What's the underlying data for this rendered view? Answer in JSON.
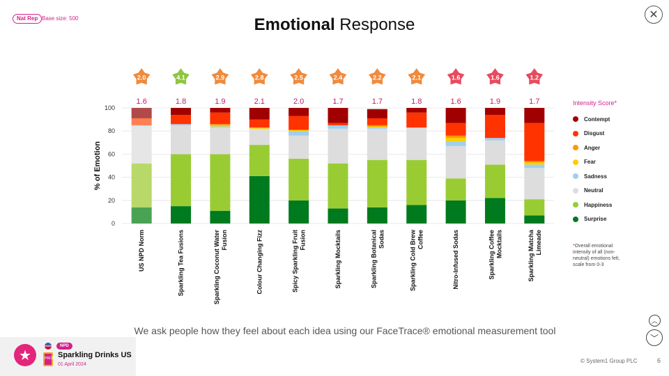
{
  "header": {
    "nat_rep_badge": "Nat Rep",
    "base_size": "Base size: 500",
    "title_bold": "Emotional",
    "title_rest": "Response",
    "close_icon": "close-icon"
  },
  "legend": {
    "title": "Intensity Score*",
    "items": [
      {
        "label": "Contempt",
        "color": "#a00000"
      },
      {
        "label": "Disgust",
        "color": "#ff3300"
      },
      {
        "label": "Anger",
        "color": "#ff9900"
      },
      {
        "label": "Fear",
        "color": "#ffcc00"
      },
      {
        "label": "Sadness",
        "color": "#9fcfef"
      },
      {
        "label": "Neutral",
        "color": "#dddddd"
      },
      {
        "label": "Happiness",
        "color": "#99cc33"
      },
      {
        "label": "Surprise",
        "color": "#007a1e"
      }
    ]
  },
  "footnote": {
    "star": "*",
    "text": "Overall emotional intensity of all (non-neutral) emotions felt, scale from 0-3"
  },
  "subtitle": "We ask people how they feel about each idea using our FaceTrace® emotional measurement tool",
  "footer": {
    "npd_badge": "NPD",
    "product_badge": "PROD",
    "category_name": "Sparkling Drinks US",
    "date": "01 April 2024",
    "copyright": "© System1 Group PLC",
    "page_number": "6",
    "logo_icon": "system1-star-logo",
    "flag_icon": "us-flag-icon"
  },
  "nav": {
    "up_icon": "chevron-up-icon",
    "down_icon": "chevron-down-icon"
  },
  "chart_data": {
    "type": "bar",
    "stacked": true,
    "ylabel": "% of Emotion",
    "ylim": [
      0,
      100
    ],
    "yticks": [
      0,
      20,
      40,
      60,
      80,
      100
    ],
    "grid": true,
    "legend_position": "right",
    "categories": [
      "US NPD Norm",
      "Sparkling Tea Fusions",
      "Sparkling Coconut Water Fusion",
      "Colour Changing Fizz",
      "Spicy Sparkling Fruit Fusion",
      "Sparkling Mocktails",
      "Sparkling Botanical Sodas",
      "Sparkling Cold Brew Coffee",
      "Nitro-Infused Sodas",
      "Sparkling Coffee Mocktails",
      "Sparkling Matcha Limeade"
    ],
    "star_ratings": [
      "2.0",
      "4.1",
      "2.9",
      "2.8",
      "2.5",
      "2.4",
      "2.2",
      "2.1",
      "1.6",
      "1.6",
      "1.2"
    ],
    "star_colors": [
      "#f08a3c",
      "#8dc63f",
      "#f08a3c",
      "#f08a3c",
      "#f08a3c",
      "#f08a3c",
      "#f08a3c",
      "#f08a3c",
      "#e84a5f",
      "#e84a5f",
      "#e84a5f"
    ],
    "intensity_scores": [
      "1.6",
      "1.8",
      "1.9",
      "2.1",
      "2.0",
      "1.7",
      "1.7",
      "1.8",
      "1.6",
      "1.9",
      "1.7"
    ],
    "norm_colors": {
      "Contempt": "#b04a4a",
      "Disgust": "#ff7f50",
      "Anger": "#ffb84d",
      "Fear": "#ffe066",
      "Sadness": "#c4e0f4",
      "Neutral": "#e6e6e6",
      "Happiness": "#b8d96a",
      "Surprise": "#4aa354"
    },
    "series": [
      {
        "name": "Surprise",
        "values": [
          14,
          15,
          11,
          41,
          20,
          13,
          14,
          16,
          20,
          22,
          7
        ]
      },
      {
        "name": "Happiness",
        "values": [
          38,
          45,
          49,
          27,
          36,
          39,
          41,
          39,
          19,
          29,
          14
        ]
      },
      {
        "name": "Neutral",
        "values": [
          32,
          25,
          23,
          14,
          20,
          30,
          27,
          28,
          28,
          21,
          27
        ]
      },
      {
        "name": "Sadness",
        "values": [
          1,
          1,
          1,
          0,
          4,
          3,
          1,
          0,
          4,
          2,
          3
        ]
      },
      {
        "name": "Fear",
        "values": [
          0,
          0,
          1,
          1,
          1,
          0,
          1,
          0,
          3,
          0,
          2
        ]
      },
      {
        "name": "Anger",
        "values": [
          0,
          0,
          1,
          0,
          0,
          0,
          1,
          0,
          2,
          0,
          1
        ]
      },
      {
        "name": "Disgust",
        "values": [
          6,
          8,
          10,
          7,
          12,
          2,
          6,
          13,
          11,
          20,
          33
        ]
      },
      {
        "name": "Contempt",
        "values": [
          9,
          6,
          4,
          10,
          7,
          13,
          8,
          4,
          13,
          6,
          13
        ]
      }
    ]
  }
}
